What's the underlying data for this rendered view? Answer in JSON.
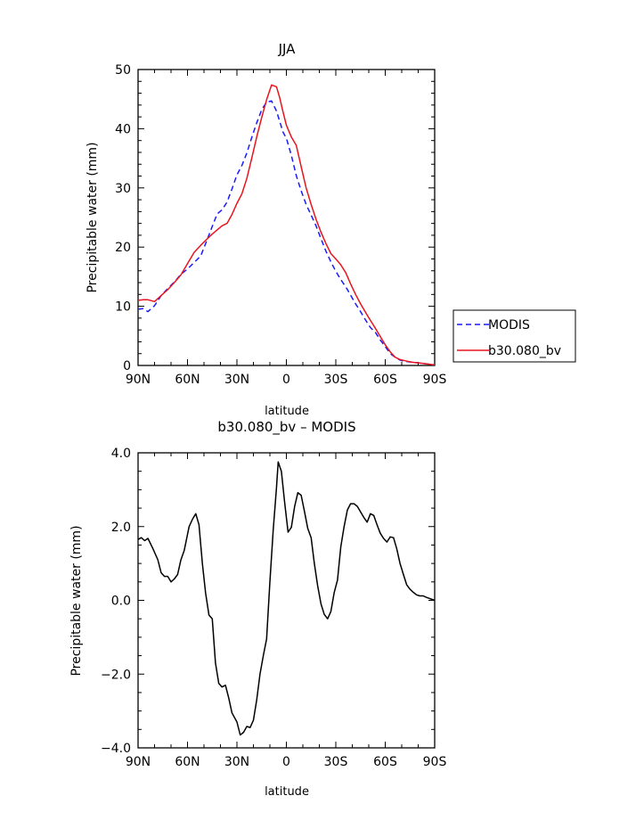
{
  "chart_data": [
    {
      "type": "line",
      "title": "JJA",
      "xlabel": "latitude",
      "ylabel": "Precipitable water (mm)",
      "xlim": [
        90,
        -90
      ],
      "ylim": [
        0,
        50
      ],
      "xticks": [
        90,
        60,
        30,
        0,
        -30,
        -60,
        -90
      ],
      "xticklabels": [
        "90N",
        "60N",
        "30N",
        "0",
        "30S",
        "60S",
        "90S"
      ],
      "yticks": [
        0,
        10,
        20,
        30,
        40,
        50
      ],
      "yticklabels": [
        "0",
        "10",
        "20",
        "30",
        "40",
        "50"
      ],
      "legend_position": "right, outside plot",
      "series": [
        {
          "name": "MODIS",
          "color": "#1a1aff",
          "dash": "dashed",
          "x": [
            90,
            87,
            84,
            80,
            76,
            72,
            68,
            64,
            60,
            56,
            52,
            48,
            45,
            42,
            39,
            36,
            33,
            30,
            27,
            24,
            21,
            18,
            15,
            12,
            9,
            6,
            4,
            2,
            0,
            -3,
            -6,
            -9,
            -12,
            -15,
            -18,
            -21,
            -24,
            -27,
            -30,
            -33,
            -36,
            -39,
            -42,
            -45,
            -48,
            -51,
            -54,
            -57,
            -60,
            -63,
            -66,
            -69,
            -72,
            -75,
            -78,
            -81,
            -84,
            -87,
            -90
          ],
          "y": [
            9.5,
            9.6,
            9.1,
            10.1,
            11.8,
            13.0,
            14.1,
            15.4,
            16.3,
            17.4,
            18.5,
            21.3,
            23.5,
            25.6,
            26.3,
            27.6,
            29.8,
            32.2,
            33.8,
            35.9,
            38.5,
            41.0,
            43.2,
            44.5,
            44.7,
            43.0,
            41.2,
            39.4,
            38.4,
            35.5,
            32.1,
            29.5,
            27.2,
            25.4,
            23.6,
            21.4,
            19.3,
            17.5,
            15.9,
            14.5,
            13.3,
            11.9,
            10.4,
            9.1,
            7.7,
            6.4,
            5.6,
            4.3,
            3.2,
            2.0,
            1.4,
            0.9,
            0.7,
            0.6,
            0.5,
            0.4,
            0.3,
            0.2,
            0.1
          ]
        },
        {
          "name": "b30.080_bv",
          "color": "#e8141e",
          "dash": "solid",
          "x": [
            90,
            87,
            84,
            80,
            76,
            72,
            68,
            64,
            60,
            56,
            52,
            48,
            45,
            42,
            39,
            36,
            33,
            30,
            27,
            24,
            21,
            18,
            15,
            12,
            9,
            6,
            4,
            2,
            0,
            -3,
            -6,
            -9,
            -12,
            -15,
            -18,
            -21,
            -24,
            -27,
            -30,
            -33,
            -36,
            -39,
            -42,
            -45,
            -48,
            -51,
            -54,
            -57,
            -60,
            -63,
            -66,
            -69,
            -72,
            -75,
            -78,
            -81,
            -84,
            -87,
            -90
          ],
          "y": [
            11.0,
            11.1,
            11.1,
            10.8,
            11.8,
            12.8,
            14.0,
            15.3,
            17.2,
            19.1,
            20.3,
            21.4,
            22.2,
            22.9,
            23.6,
            24.0,
            25.5,
            27.4,
            29.0,
            31.6,
            35.0,
            38.6,
            41.9,
            44.9,
            47.4,
            47.1,
            45.2,
            42.8,
            40.6,
            38.6,
            37.2,
            33.6,
            30.0,
            27.2,
            24.7,
            22.5,
            20.6,
            18.9,
            18.0,
            17.0,
            15.7,
            13.8,
            12.0,
            10.4,
            9.0,
            7.6,
            6.3,
            4.9,
            3.5,
            2.3,
            1.4,
            1.0,
            0.8,
            0.6,
            0.5,
            0.4,
            0.3,
            0.2,
            0.1
          ]
        }
      ]
    },
    {
      "type": "line",
      "title": "b30.080_bv – MODIS",
      "xlabel": "latitude",
      "ylabel": "Precipitable water (mm)",
      "xlim": [
        90,
        -90
      ],
      "ylim": [
        -4,
        4
      ],
      "xticks": [
        90,
        60,
        30,
        0,
        -30,
        -60,
        -90
      ],
      "xticklabels": [
        "90N",
        "60N",
        "30N",
        "0",
        "30S",
        "60S",
        "90S"
      ],
      "yticks": [
        4,
        2,
        0,
        -2,
        -4
      ],
      "yticklabels": [
        "4.0",
        "2.0",
        "0.0",
        "−2.0",
        "−4.0"
      ],
      "series": [
        {
          "color": "#000000",
          "dash": "solid",
          "x": [
            90,
            88,
            86,
            84,
            81,
            78,
            76,
            74,
            72,
            70,
            68,
            66,
            64,
            62,
            59,
            57,
            55,
            53,
            51,
            49,
            47,
            45,
            43,
            41,
            39,
            37,
            35,
            33,
            30,
            28,
            26,
            24,
            22,
            20,
            18,
            16,
            14,
            12,
            10,
            8,
            6,
            5,
            3,
            1,
            -1,
            -3,
            -5,
            -7,
            -9,
            -11,
            -13,
            -15,
            -17,
            -19,
            -21,
            -23,
            -25,
            -27,
            -29,
            -31,
            -33,
            -35,
            -37,
            -39,
            -41,
            -43,
            -45,
            -47,
            -49,
            -51,
            -53,
            -55,
            -57,
            -59,
            -61,
            -63,
            -65,
            -67,
            -69,
            -71,
            -73,
            -75,
            -77,
            -79,
            -81,
            -83,
            -85,
            -87,
            -90
          ],
          "y": [
            1.65,
            1.7,
            1.62,
            1.68,
            1.4,
            1.1,
            0.75,
            0.65,
            0.65,
            0.5,
            0.58,
            0.7,
            1.1,
            1.35,
            2.0,
            2.2,
            2.35,
            2.05,
            1.0,
            0.2,
            -0.4,
            -0.5,
            -1.7,
            -2.25,
            -2.35,
            -2.3,
            -2.65,
            -3.05,
            -3.3,
            -3.65,
            -3.58,
            -3.42,
            -3.45,
            -3.25,
            -2.7,
            -2.0,
            -1.5,
            -1.05,
            0.5,
            1.9,
            3.05,
            3.75,
            3.5,
            2.65,
            1.85,
            1.98,
            2.55,
            2.92,
            2.85,
            2.4,
            1.95,
            1.7,
            1.0,
            0.4,
            -0.1,
            -0.38,
            -0.5,
            -0.3,
            0.2,
            0.55,
            1.45,
            2.0,
            2.45,
            2.62,
            2.62,
            2.55,
            2.4,
            2.25,
            2.12,
            2.35,
            2.3,
            2.05,
            1.82,
            1.68,
            1.58,
            1.72,
            1.7,
            1.4,
            1.0,
            0.7,
            0.42,
            0.3,
            0.22,
            0.15,
            0.12,
            0.12,
            0.08,
            0.05,
            0.0
          ]
        }
      ]
    }
  ]
}
